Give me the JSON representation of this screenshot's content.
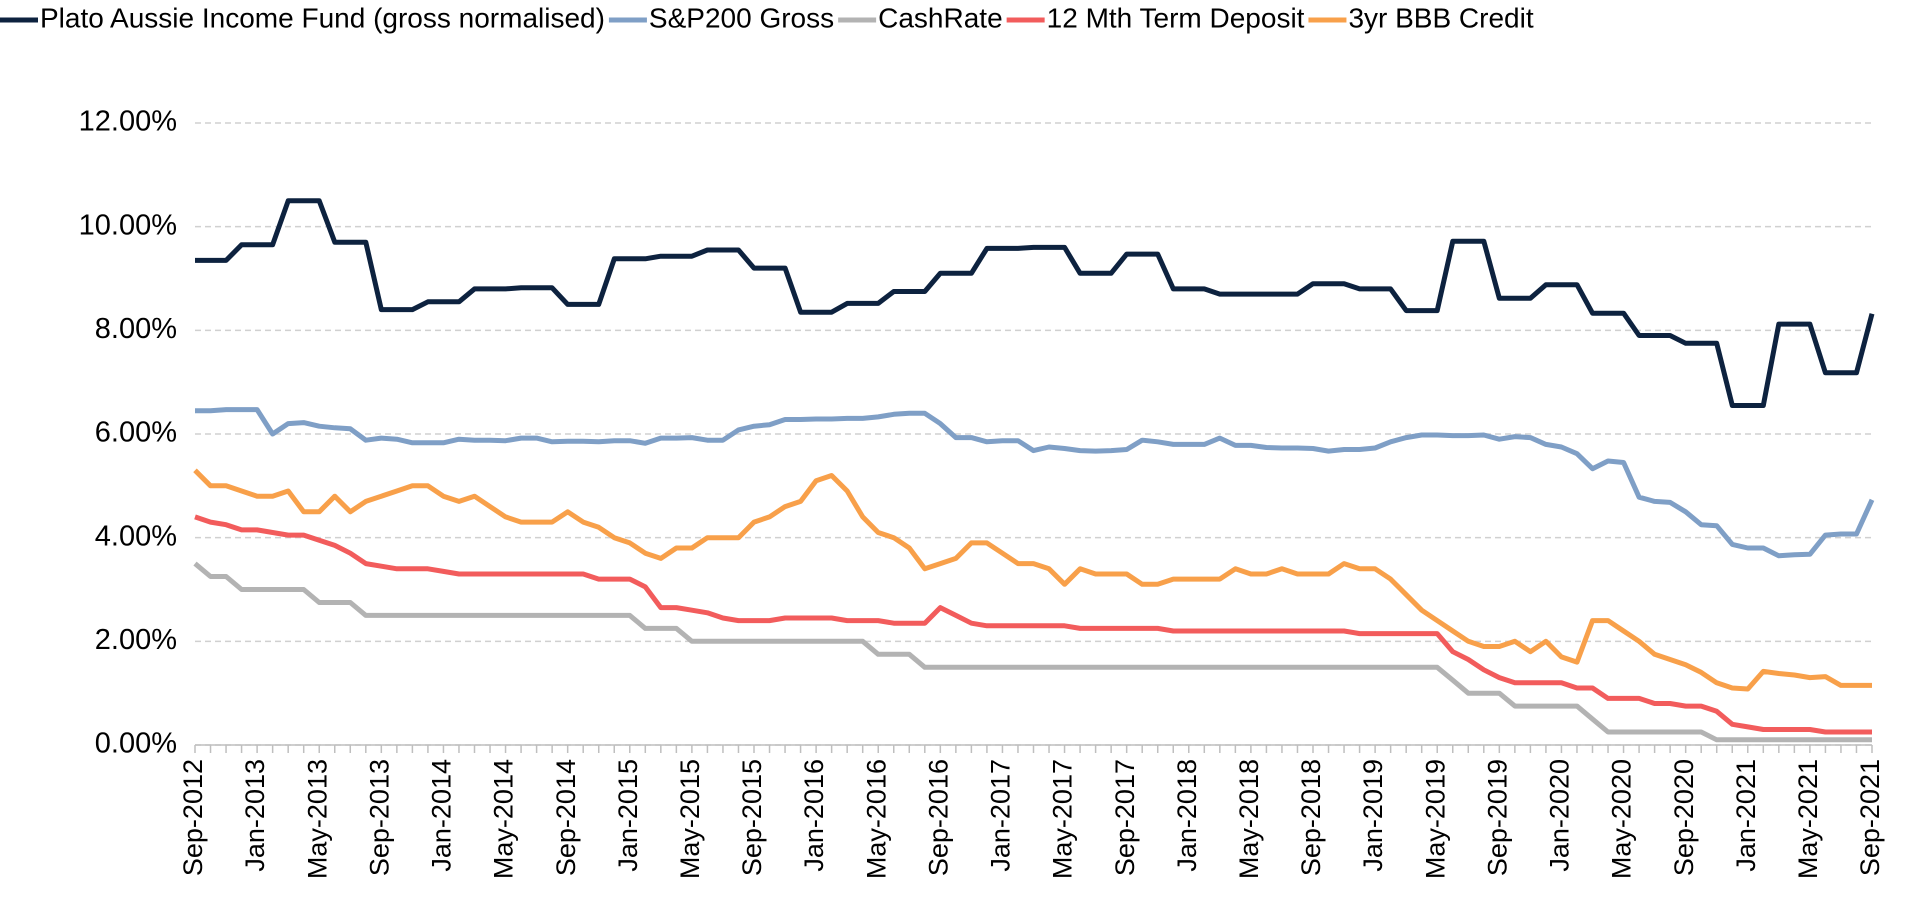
{
  "chart_data": {
    "type": "line",
    "categories": [
      "Sep-2012",
      null,
      null,
      null,
      "Jan-2013",
      null,
      null,
      null,
      "May-2013",
      null,
      null,
      null,
      "Sep-2013",
      null,
      null,
      null,
      "Jan-2014",
      null,
      null,
      null,
      "May-2014",
      null,
      null,
      null,
      "Sep-2014",
      null,
      null,
      null,
      "Jan-2015",
      null,
      null,
      null,
      "May-2015",
      null,
      null,
      null,
      "Sep-2015",
      null,
      null,
      null,
      "Jan-2016",
      null,
      null,
      null,
      "May-2016",
      null,
      null,
      null,
      "Sep-2016",
      null,
      null,
      null,
      "Jan-2017",
      null,
      null,
      null,
      "May-2017",
      null,
      null,
      null,
      "Sep-2017",
      null,
      null,
      null,
      "Jan-2018",
      null,
      null,
      null,
      "May-2018",
      null,
      null,
      null,
      "Sep-2018",
      null,
      null,
      null,
      "Jan-2019",
      null,
      null,
      null,
      "May-2019",
      null,
      null,
      null,
      "Sep-2019",
      null,
      null,
      null,
      "Jan-2020",
      null,
      null,
      null,
      "May-2020",
      null,
      null,
      null,
      "Sep-2020",
      null,
      null,
      null,
      "Jan-2021",
      null,
      null,
      null,
      "May-2021",
      null,
      null,
      null,
      "Sep-2021"
    ],
    "series": [
      {
        "name": "Plato Aussie Income Fund (gross normalised)",
        "color": "#0d223f",
        "values": [
          9.35,
          9.35,
          9.35,
          9.65,
          9.65,
          9.65,
          10.5,
          10.5,
          10.5,
          9.7,
          9.7,
          9.7,
          8.4,
          8.4,
          8.4,
          8.55,
          8.55,
          8.55,
          8.8,
          8.8,
          8.8,
          8.82,
          8.82,
          8.82,
          8.5,
          8.5,
          8.5,
          9.38,
          9.38,
          9.38,
          9.43,
          9.43,
          9.43,
          9.55,
          9.55,
          9.55,
          9.2,
          9.2,
          9.2,
          8.35,
          8.35,
          8.35,
          8.52,
          8.52,
          8.52,
          8.75,
          8.75,
          8.75,
          9.1,
          9.1,
          9.1,
          9.58,
          9.58,
          9.58,
          9.6,
          9.6,
          9.6,
          9.1,
          9.1,
          9.1,
          9.47,
          9.47,
          9.47,
          8.8,
          8.8,
          8.8,
          8.7,
          8.7,
          8.7,
          8.7,
          8.7,
          8.7,
          8.9,
          8.9,
          8.9,
          8.8,
          8.8,
          8.8,
          8.38,
          8.38,
          8.38,
          9.72,
          9.72,
          9.72,
          8.62,
          8.62,
          8.62,
          8.88,
          8.88,
          8.88,
          8.33,
          8.33,
          8.33,
          7.9,
          7.9,
          7.9,
          7.75,
          7.75,
          7.75,
          6.55,
          6.55,
          6.55,
          8.12,
          8.12,
          8.12,
          7.18,
          7.18,
          7.18,
          8.32
        ]
      },
      {
        "name": "S&P200 Gross",
        "color": "#7f9fc6",
        "values": [
          6.45,
          6.45,
          6.47,
          6.47,
          6.47,
          6.0,
          6.2,
          6.22,
          6.15,
          6.12,
          6.1,
          5.88,
          5.92,
          5.9,
          5.83,
          5.83,
          5.83,
          5.9,
          5.88,
          5.88,
          5.87,
          5.92,
          5.92,
          5.85,
          5.86,
          5.86,
          5.85,
          5.87,
          5.87,
          5.82,
          5.92,
          5.92,
          5.93,
          5.88,
          5.88,
          6.08,
          6.15,
          6.18,
          6.28,
          6.28,
          6.29,
          6.29,
          6.3,
          6.3,
          6.33,
          6.38,
          6.4,
          6.4,
          6.2,
          5.93,
          5.93,
          5.85,
          5.87,
          5.87,
          5.68,
          5.75,
          5.72,
          5.68,
          5.67,
          5.68,
          5.7,
          5.88,
          5.85,
          5.8,
          5.8,
          5.8,
          5.92,
          5.78,
          5.78,
          5.74,
          5.73,
          5.73,
          5.72,
          5.67,
          5.7,
          5.7,
          5.73,
          5.85,
          5.93,
          5.98,
          5.98,
          5.97,
          5.97,
          5.98,
          5.9,
          5.95,
          5.93,
          5.8,
          5.75,
          5.62,
          5.33,
          5.48,
          5.45,
          4.78,
          4.7,
          4.68,
          4.5,
          4.25,
          4.23,
          3.87,
          3.8,
          3.8,
          3.65,
          3.67,
          3.68,
          4.05,
          4.07,
          4.07,
          4.73
        ]
      },
      {
        "name": "CashRate",
        "color": "#b3b3b3",
        "values": [
          3.5,
          3.25,
          3.25,
          3.0,
          3.0,
          3.0,
          3.0,
          3.0,
          2.75,
          2.75,
          2.75,
          2.5,
          2.5,
          2.5,
          2.5,
          2.5,
          2.5,
          2.5,
          2.5,
          2.5,
          2.5,
          2.5,
          2.5,
          2.5,
          2.5,
          2.5,
          2.5,
          2.5,
          2.5,
          2.25,
          2.25,
          2.25,
          2.0,
          2.0,
          2.0,
          2.0,
          2.0,
          2.0,
          2.0,
          2.0,
          2.0,
          2.0,
          2.0,
          2.0,
          1.75,
          1.75,
          1.75,
          1.5,
          1.5,
          1.5,
          1.5,
          1.5,
          1.5,
          1.5,
          1.5,
          1.5,
          1.5,
          1.5,
          1.5,
          1.5,
          1.5,
          1.5,
          1.5,
          1.5,
          1.5,
          1.5,
          1.5,
          1.5,
          1.5,
          1.5,
          1.5,
          1.5,
          1.5,
          1.5,
          1.5,
          1.5,
          1.5,
          1.5,
          1.5,
          1.5,
          1.5,
          1.25,
          1.0,
          1.0,
          1.0,
          0.75,
          0.75,
          0.75,
          0.75,
          0.75,
          0.5,
          0.25,
          0.25,
          0.25,
          0.25,
          0.25,
          0.25,
          0.25,
          0.1,
          0.1,
          0.1,
          0.1,
          0.1,
          0.1,
          0.1,
          0.1,
          0.1,
          0.1,
          0.1
        ]
      },
      {
        "name": "12 Mth Term Deposit",
        "color": "#f25c5c",
        "values": [
          4.4,
          4.3,
          4.25,
          4.15,
          4.15,
          4.1,
          4.05,
          4.05,
          3.95,
          3.85,
          3.7,
          3.5,
          3.45,
          3.4,
          3.4,
          3.4,
          3.35,
          3.3,
          3.3,
          3.3,
          3.3,
          3.3,
          3.3,
          3.3,
          3.3,
          3.3,
          3.2,
          3.2,
          3.2,
          3.05,
          2.65,
          2.65,
          2.6,
          2.55,
          2.45,
          2.4,
          2.4,
          2.4,
          2.45,
          2.45,
          2.45,
          2.45,
          2.4,
          2.4,
          2.4,
          2.35,
          2.35,
          2.35,
          2.65,
          2.5,
          2.35,
          2.3,
          2.3,
          2.3,
          2.3,
          2.3,
          2.3,
          2.25,
          2.25,
          2.25,
          2.25,
          2.25,
          2.25,
          2.2,
          2.2,
          2.2,
          2.2,
          2.2,
          2.2,
          2.2,
          2.2,
          2.2,
          2.2,
          2.2,
          2.2,
          2.15,
          2.15,
          2.15,
          2.15,
          2.15,
          2.15,
          1.8,
          1.65,
          1.45,
          1.3,
          1.2,
          1.2,
          1.2,
          1.2,
          1.1,
          1.1,
          0.9,
          0.9,
          0.9,
          0.8,
          0.8,
          0.75,
          0.75,
          0.65,
          0.4,
          0.35,
          0.3,
          0.3,
          0.3,
          0.3,
          0.25,
          0.25,
          0.25,
          0.25
        ]
      },
      {
        "name": "3yr BBB Credit",
        "color": "#f8a04a",
        "values": [
          5.3,
          5.0,
          5.0,
          4.9,
          4.8,
          4.8,
          4.9,
          4.5,
          4.5,
          4.8,
          4.5,
          4.7,
          4.8,
          4.9,
          5.0,
          5.0,
          4.8,
          4.7,
          4.8,
          4.6,
          4.4,
          4.3,
          4.3,
          4.3,
          4.5,
          4.3,
          4.2,
          4.0,
          3.9,
          3.7,
          3.6,
          3.8,
          3.8,
          4.0,
          4.0,
          4.0,
          4.3,
          4.4,
          4.6,
          4.7,
          5.1,
          5.2,
          4.9,
          4.4,
          4.1,
          4.0,
          3.8,
          3.4,
          3.5,
          3.6,
          3.9,
          3.9,
          3.7,
          3.5,
          3.5,
          3.4,
          3.1,
          3.4,
          3.3,
          3.3,
          3.3,
          3.1,
          3.1,
          3.2,
          3.2,
          3.2,
          3.2,
          3.4,
          3.3,
          3.3,
          3.4,
          3.3,
          3.3,
          3.3,
          3.5,
          3.4,
          3.4,
          3.2,
          2.9,
          2.6,
          2.4,
          2.2,
          2.0,
          1.9,
          1.9,
          2.0,
          1.8,
          2.0,
          1.7,
          1.6,
          2.4,
          2.4,
          2.2,
          2.0,
          1.75,
          1.65,
          1.55,
          1.4,
          1.2,
          1.1,
          1.08,
          1.42,
          1.38,
          1.35,
          1.3,
          1.32,
          1.15,
          1.15,
          1.15
        ]
      }
    ],
    "ylim": [
      0,
      12
    ],
    "yticks": [
      {
        "value": 0,
        "label": "0.00%"
      },
      {
        "value": 2,
        "label": "2.00%"
      },
      {
        "value": 4,
        "label": "4.00%"
      },
      {
        "value": 6,
        "label": "6.00%"
      },
      {
        "value": 8,
        "label": "8.00%"
      },
      {
        "value": 10,
        "label": "10.00%"
      },
      {
        "value": 12,
        "label": "12.00%"
      }
    ],
    "grid": true,
    "legend": "top"
  }
}
